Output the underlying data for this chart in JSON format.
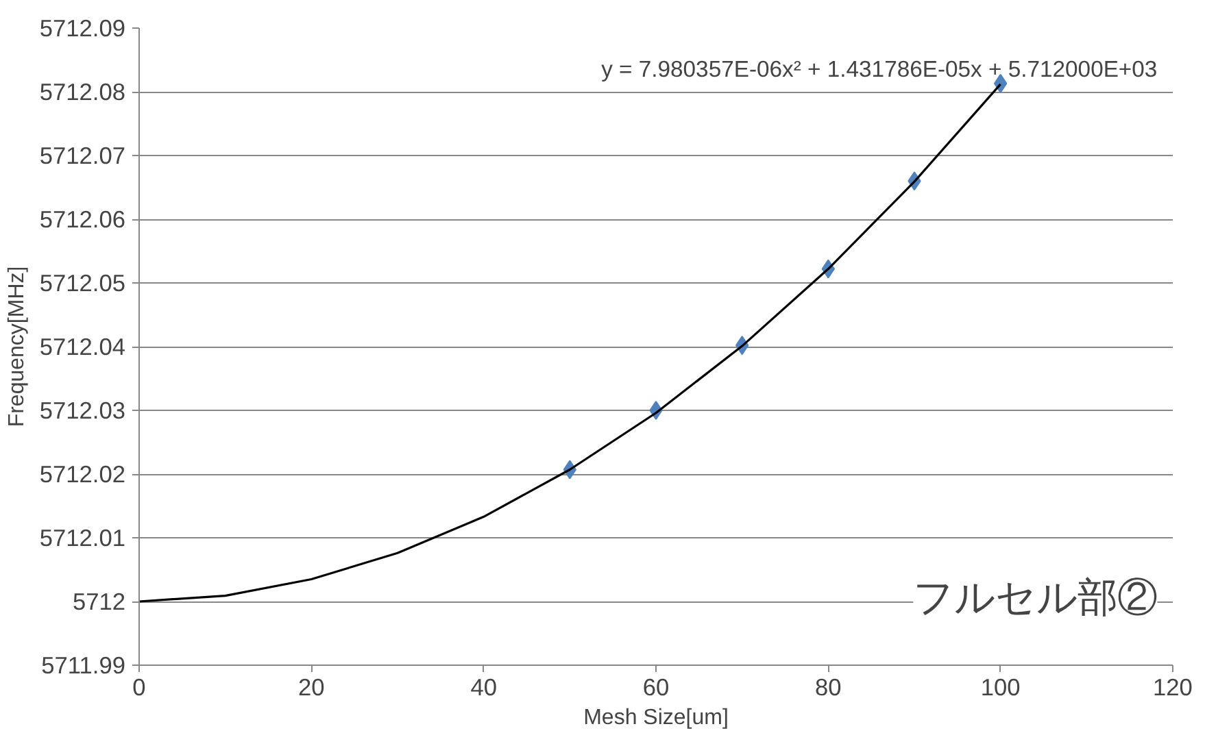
{
  "chart_data": {
    "type": "scatter",
    "xlabel": "Mesh Size[um]",
    "ylabel": "Frequency[MHz]",
    "xlim": [
      0,
      120
    ],
    "xticks": [
      0,
      20,
      40,
      60,
      80,
      100,
      120
    ],
    "ylim": [
      5711.99,
      5712.09
    ],
    "yticks": [
      5711.99,
      5712,
      5712.01,
      5712.02,
      5712.03,
      5712.04,
      5712.05,
      5712.06,
      5712.07,
      5712.08,
      5712.09
    ],
    "grid": "y",
    "series": [
      {
        "marker": "diamond",
        "color": "#4f81bd",
        "x": [
          50,
          60,
          70,
          80,
          90,
          100
        ],
        "values": [
          5712.0207,
          5712.03,
          5712.0402,
          5712.0522,
          5712.066,
          5712.0813
        ]
      },
      {
        "type": "line",
        "marker": "none",
        "line_style": "solid",
        "color": "#000000",
        "x": [
          0,
          10,
          20,
          30,
          40,
          50,
          60,
          70,
          80,
          90,
          100
        ],
        "values": [
          5712.0,
          5712.0009,
          5712.0035,
          5712.0076,
          5712.0133,
          5712.0207,
          5712.0296,
          5712.0401,
          5712.0522,
          5712.0659,
          5712.0812
        ]
      }
    ],
    "annotations": [
      "y = 7.980357E-06x² + 1.431786E-05x + 5.712000E+03",
      "フルセル部②"
    ]
  }
}
